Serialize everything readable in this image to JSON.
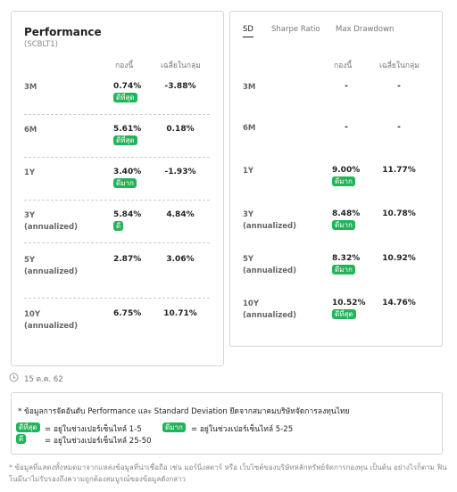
{
  "performance": {
    "title": "Performance",
    "subtitle": "(SCBLT1)",
    "columns": [
      "กองนี้",
      "เฉลี่ยในกลุ่ม"
    ],
    "rows": [
      {
        "period": "3M",
        "fund": "0.74%",
        "badge": "ดีที่สุด",
        "average": "-3.88%"
      },
      {
        "period": "6M",
        "fund": "5.61%",
        "badge": "ดีที่สุด",
        "average": "0.18%"
      },
      {
        "period": "1Y",
        "fund": "3.40%",
        "badge": "ดีมาก",
        "average": "-1.93%"
      },
      {
        "period": "3Y",
        "note": "(annualized)",
        "fund": "5.84%",
        "badge": "ดี",
        "average": "4.84%"
      },
      {
        "period": "5Y",
        "note": "(annualized)",
        "fund": "2.87%",
        "average": "3.06%"
      },
      {
        "period": "10Y",
        "note": "(annualized)",
        "fund": "6.75%",
        "average": "10.71%"
      }
    ]
  },
  "risk": {
    "tabs": [
      "SD",
      "Sharpe Ratio",
      "Max Drawdown"
    ],
    "active_tab": 0,
    "columns": [
      "กองนี้",
      "เฉลี่ยในกลุ่ม"
    ],
    "rows": [
      {
        "period": "3M",
        "fund": "-",
        "average": "-"
      },
      {
        "period": "6M",
        "fund": "-",
        "average": "-"
      },
      {
        "period": "1Y",
        "fund": "9.00%",
        "badge": "ดีมาก",
        "average": "11.77%"
      },
      {
        "period": "3Y",
        "note": "(annualized)",
        "fund": "8.48%",
        "badge": "ดีมาก",
        "average": "10.78%"
      },
      {
        "period": "5Y",
        "note": "(annualized)",
        "fund": "8.32%",
        "badge": "ดีมาก",
        "average": "10.92%"
      },
      {
        "period": "10Y",
        "note": "(annualized)",
        "fund": "10.52%",
        "badge": "ดีที่สุด",
        "average": "14.76%"
      }
    ]
  },
  "date": "15 ต.ค. 62",
  "ranking_note": {
    "text": "* ข้อมูลการจัดอันดับ Performance และ Standard Deviation ยึดจากสมาคมบริษัทจัดการลงทุนไทย",
    "legend": [
      {
        "badge": "ดีที่สุด",
        "text": "= อยู่ในช่วงเปอร์เซ็นไทล์ 1-5"
      },
      {
        "badge": "ดีมาก",
        "text": "= อยู่ในช่วงเปอร์เซ็นไทล์ 5-25"
      },
      {
        "badge": "ดี",
        "text": "= อยู่ในช่วงเปอร์เซ็นไทล์ 25-50"
      }
    ]
  },
  "disclaimer": "* ข้อมูลที่แสดงทั้งหมดมาจากแหล่งข้อมูลที่น่าเชื่อถือ เช่น มอร์นิ่งสตาร์ หรือ เว็บไซต์ของบริษัทหลักทรัพย์จัดการกองทุน เป็นต้น อย่างไรก็ตาม ฟินโนมีนาไม่รับรองถึงความถูกต้องสมบูรณ์ของข้อมูลดังกล่าว"
}
